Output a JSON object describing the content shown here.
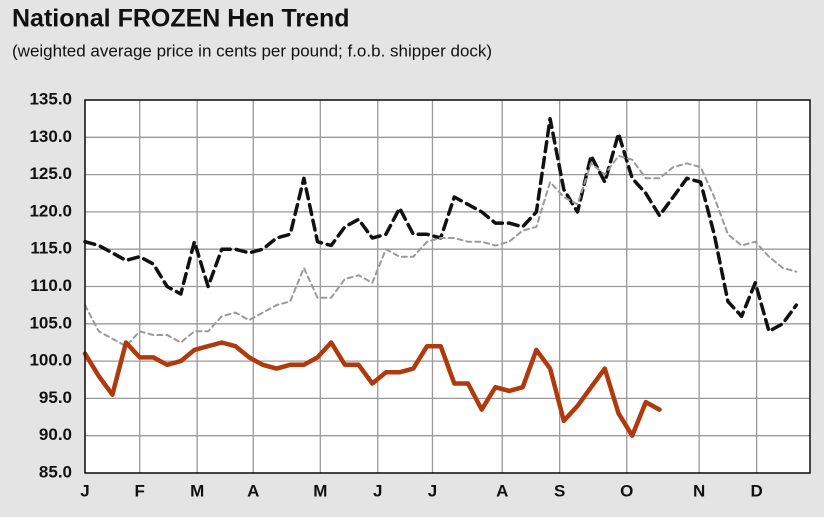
{
  "chart_data": {
    "type": "line",
    "title": "National FROZEN Hen Trend",
    "subtitle": "(weighted average price in cents per pound; f.o.b. shipper dock)",
    "x": [
      0,
      1,
      2,
      3,
      4,
      5,
      6,
      7,
      8,
      9,
      10,
      11,
      12,
      13,
      14,
      15,
      16,
      17,
      18,
      19,
      20,
      21,
      22,
      23,
      24,
      25,
      26,
      27,
      28,
      29,
      30,
      31,
      32,
      33,
      34,
      35,
      36,
      37,
      38,
      39,
      40,
      41,
      42,
      43,
      44,
      45,
      46,
      47,
      48,
      49,
      50,
      51,
      52
    ],
    "xlim": [
      0,
      53
    ],
    "xticks": [
      {
        "value": 0,
        "label": "J"
      },
      {
        "value": 4,
        "label": "F"
      },
      {
        "value": 8.2,
        "label": "M"
      },
      {
        "value": 12.3,
        "label": "A"
      },
      {
        "value": 17.2,
        "label": "M"
      },
      {
        "value": 21.4,
        "label": "J"
      },
      {
        "value": 25.4,
        "label": "J"
      },
      {
        "value": 30.5,
        "label": "A"
      },
      {
        "value": 34.7,
        "label": "S"
      },
      {
        "value": 39.6,
        "label": "O"
      },
      {
        "value": 44.9,
        "label": "N"
      },
      {
        "value": 49.1,
        "label": "D"
      }
    ],
    "ylim": [
      85,
      135
    ],
    "yticks": [
      {
        "value": 85,
        "label": "85.0"
      },
      {
        "value": 90,
        "label": "90.0"
      },
      {
        "value": 95,
        "label": "95.0"
      },
      {
        "value": 100,
        "label": "100.0"
      },
      {
        "value": 105,
        "label": "105.0"
      },
      {
        "value": 110,
        "label": "110.0"
      },
      {
        "value": 115,
        "label": "115.0"
      },
      {
        "value": 120,
        "label": "120.0"
      },
      {
        "value": 125,
        "label": "125.0"
      },
      {
        "value": 130,
        "label": "130.0"
      },
      {
        "value": 135,
        "label": "135.0"
      }
    ],
    "grid": true,
    "series": [
      {
        "color": "#111111",
        "line_style": "dashed",
        "values": [
          116,
          115.5,
          114.5,
          113.5,
          114,
          113,
          110,
          109,
          116,
          110,
          115,
          115,
          114.5,
          115,
          116.5,
          117,
          124.5,
          116,
          115.5,
          118,
          119,
          116.5,
          117,
          120.5,
          117,
          117,
          116.5,
          122,
          121,
          120,
          118.5,
          118.5,
          118,
          120,
          132.5,
          123,
          120,
          127.5,
          124,
          130.5,
          124.5,
          122.5,
          119.5,
          122,
          124.5,
          124,
          117,
          108,
          106,
          110.5,
          104,
          105,
          107.5
        ]
      },
      {
        "color": "#9a9a9a",
        "line_style": "dashed",
        "values": [
          107.5,
          104,
          103,
          102,
          104,
          103.5,
          103.5,
          102.5,
          104,
          104,
          106,
          106.5,
          105.5,
          106.5,
          107.5,
          108,
          112.5,
          108.5,
          108.5,
          111,
          111.5,
          110.5,
          115,
          114,
          114,
          116,
          116.5,
          116.5,
          116,
          116,
          115.5,
          116,
          117.5,
          118,
          124,
          122,
          121,
          126.5,
          125,
          127.5,
          127,
          124.5,
          124.5,
          126,
          126.5,
          126,
          122,
          117,
          115.5,
          116,
          114,
          112.5,
          112
        ]
      },
      {
        "color": "#b03a0c",
        "line_style": "solid",
        "values": [
          101,
          98,
          95.5,
          102.5,
          100.5,
          100.5,
          99.5,
          100,
          101.5,
          102,
          102.5,
          102,
          100.5,
          99.5,
          99,
          99.5,
          99.5,
          100.5,
          102.5,
          99.5,
          99.5,
          97,
          98.5,
          98.5,
          99,
          102,
          102,
          97,
          97,
          93.5,
          96.5,
          96,
          96.5,
          101.5,
          99,
          92,
          94,
          96.5,
          99,
          93,
          90,
          94.5,
          93.5,
          null,
          null,
          null,
          null,
          null,
          null,
          null,
          null,
          null,
          null
        ]
      }
    ]
  }
}
